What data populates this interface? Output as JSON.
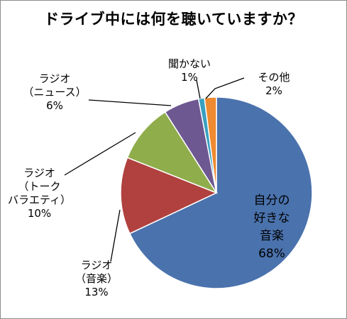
{
  "chart_data": {
    "type": "pie",
    "title": "ドライブ中には何を聴いていますか？",
    "start_angle_deg": 90,
    "direction": "clockwise",
    "slices": [
      {
        "key": "own",
        "label_lines": [
          "自分の",
          "好きな",
          "音楽"
        ],
        "percent_label": "68%",
        "value": 68,
        "color": "#4a72ad"
      },
      {
        "key": "radio-music",
        "label_lines": [
          "ラジオ",
          "（音楽）"
        ],
        "percent_label": "13%",
        "value": 13,
        "color": "#b0413e"
      },
      {
        "key": "radio-talk",
        "label_lines": [
          "ラジオ",
          "（トーク",
          "バラエティ）"
        ],
        "percent_label": "10%",
        "value": 10,
        "color": "#8fad4b"
      },
      {
        "key": "radio-news",
        "label_lines": [
          "ラジオ",
          "（ニュース）"
        ],
        "percent_label": "6%",
        "value": 6,
        "color": "#6e5891"
      },
      {
        "key": "none",
        "label_lines": [
          "聞かない"
        ],
        "percent_label": "1%",
        "value": 1,
        "color": "#3aa0c0"
      },
      {
        "key": "other",
        "label_lines": [
          "その他"
        ],
        "percent_label": "2%",
        "value": 2,
        "color": "#ee8a30"
      }
    ]
  }
}
